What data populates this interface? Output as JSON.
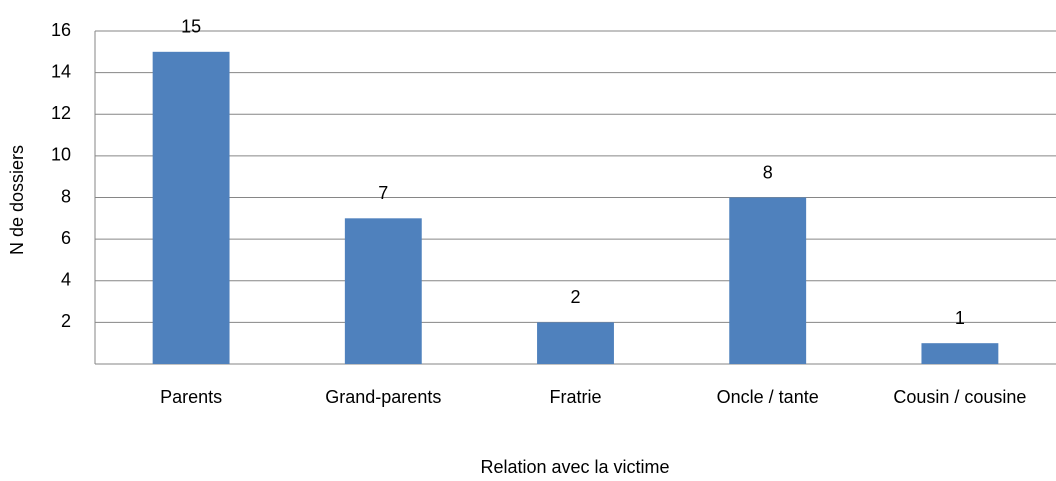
{
  "chart_data": {
    "type": "bar",
    "categories": [
      "Parents",
      "Grand-parents",
      "Fratrie",
      "Oncle / tante",
      "Cousin / cousine"
    ],
    "values": [
      15,
      7,
      2,
      8,
      1
    ],
    "color": "#4f81bd",
    "x_label": "Relation avec la victime",
    "y_label": "N de dossiers",
    "ylim": [
      0,
      16
    ],
    "yticks": [
      2,
      4,
      6,
      8,
      10,
      12,
      14,
      16
    ],
    "grid": true
  }
}
